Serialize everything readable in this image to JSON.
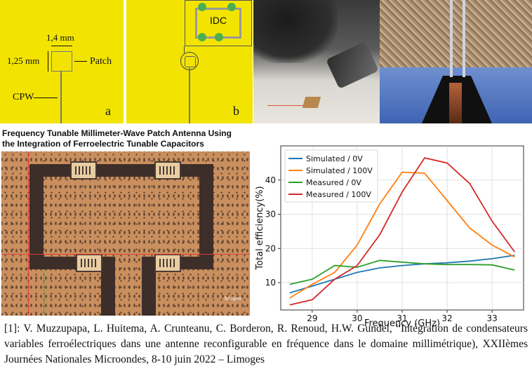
{
  "panels": {
    "a": {
      "dim_width": "1,4 mm",
      "dim_height": "1,25 mm",
      "patch_label": "Patch",
      "cpw_label": "CPW",
      "letter": "a"
    },
    "b": {
      "idc_label": "IDC",
      "letter": "b"
    }
  },
  "caption": {
    "line1": "Frequency Tunable Millimeter-Wave Patch Antenna Using",
    "line2": "the Integration of Ferroelectric Tunable Capacitors"
  },
  "micrograph": {
    "scale_label": "50.0µm"
  },
  "chart_data": {
    "type": "line",
    "xlabel": "Frequency (GHz)",
    "ylabel": "Total efficiency(%)",
    "xlim": [
      28.3,
      33.7
    ],
    "ylim": [
      2,
      50
    ],
    "xticks": [
      29,
      30,
      31,
      32,
      33
    ],
    "yticks": [
      10,
      20,
      30,
      40
    ],
    "grid": true,
    "legend": "top-left",
    "x": [
      28.5,
      29,
      29.5,
      30,
      30.5,
      31,
      31.5,
      32,
      32.5,
      33,
      33.5
    ],
    "series": [
      {
        "name": "Simulated / 0V",
        "color": "#1f77b4",
        "values": [
          7,
          9,
          11,
          13,
          14.3,
          15,
          15.5,
          15.8,
          16.3,
          17,
          18
        ]
      },
      {
        "name": "Simulated / 100V",
        "color": "#ff7f0e",
        "values": [
          5.5,
          9.5,
          13,
          21,
          33,
          42.3,
          42,
          34,
          26,
          21,
          17.5
        ]
      },
      {
        "name": "Measured / 0V",
        "color": "#2ca02c",
        "values": [
          9.5,
          11,
          15,
          14.5,
          16.5,
          16,
          15.5,
          15.3,
          15.3,
          15.2,
          13.7
        ]
      },
      {
        "name": "Measured / 100V",
        "color": "#d62728",
        "values": [
          3.5,
          5,
          11,
          15,
          24,
          36.5,
          46.5,
          45,
          39,
          28,
          19
        ]
      }
    ]
  },
  "reference": {
    "text": "[1]: V. Muzzupapa, L. Huitema, A. Crunteanu, C. Borderon, R. Renoud, H.W. Gundel, “Intégration de condensateurs variables ferroélectriques dans une antenne reconfigurable en fréquence dans le domaine millimétrique), XXIIèmes Journées Nationales Microondes, 8-10 juin 2022 – Limoges"
  }
}
